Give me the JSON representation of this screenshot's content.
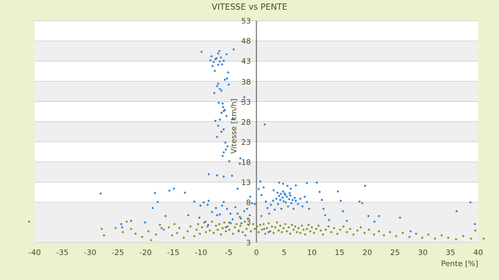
{
  "chart_data": {
    "type": "scatter",
    "title": "VITESSE vs PENTE",
    "xlabel": "Pente [%]",
    "ylabel": "Vitesse [km/h]",
    "xlim": [
      -40,
      40
    ],
    "ylim": [
      3,
      53
    ],
    "x_ticks": [
      "-40",
      "-35",
      "-30",
      "-25",
      "-20",
      "-15",
      "-10",
      "-5",
      "0",
      "5",
      "10",
      "15",
      "20",
      "25",
      "30",
      "35",
      "40"
    ],
    "y_ticks": [
      "3",
      "3",
      "8",
      "13",
      "18",
      "23",
      "28",
      "33",
      "38",
      "43",
      "48",
      "53"
    ],
    "background": "#ecf2cf",
    "plot_bg": "#ffffff",
    "band_color": "#efefef",
    "grid": true,
    "legend": "none",
    "series": [
      {
        "color": "#2b7fd4",
        "points": [
          [
            -9.9,
            45.3
          ],
          [
            -8.3,
            43.2
          ],
          [
            -8.1,
            44.2
          ],
          [
            -7.9,
            41.8
          ],
          [
            -7.7,
            42.8
          ],
          [
            -7.5,
            40.6
          ],
          [
            -7.4,
            43.5
          ],
          [
            -6.9,
            44.9
          ],
          [
            -6.7,
            45.5
          ],
          [
            -6.6,
            42.9
          ],
          [
            -6.4,
            43.9
          ],
          [
            -6.2,
            42.2
          ],
          [
            -5.9,
            43.1
          ],
          [
            -5.4,
            44.7
          ],
          [
            -6.9,
            42.1
          ],
          [
            -7.2,
            43.7
          ],
          [
            -4.1,
            45.9
          ],
          [
            -5.1,
            40.2
          ],
          [
            -7.1,
            36.8
          ],
          [
            -6.9,
            37.4
          ],
          [
            -6.6,
            36.1
          ],
          [
            -6.3,
            35.7
          ],
          [
            -7.6,
            35.1
          ],
          [
            -5.7,
            38.4
          ],
          [
            -5.3,
            38.7
          ],
          [
            -5.0,
            37.2
          ],
          [
            -6.8,
            32.7
          ],
          [
            -6.1,
            32.5
          ],
          [
            -6.0,
            31.6
          ],
          [
            -5.9,
            30.6
          ],
          [
            -6.3,
            30.2
          ],
          [
            -5.7,
            30.9
          ],
          [
            -5.4,
            29.4
          ],
          [
            -6.6,
            28.5
          ],
          [
            -7.4,
            28.2
          ],
          [
            -6.9,
            27.0
          ],
          [
            -5.9,
            26.1
          ],
          [
            -6.3,
            25.5
          ],
          [
            -7.1,
            24.2
          ],
          [
            -5.6,
            22.8
          ],
          [
            -5.2,
            21.9
          ],
          [
            -5.5,
            21.1
          ],
          [
            -5.9,
            20.4
          ],
          [
            -6.1,
            19.5
          ],
          [
            -4.9,
            18.2
          ],
          [
            -2.9,
            18.9
          ],
          [
            -3.0,
            17.6
          ],
          [
            -2.2,
            34.1
          ],
          [
            -2.6,
            33.0
          ],
          [
            -4.3,
            28.7
          ],
          [
            -8.6,
            15.0
          ],
          [
            -7.1,
            14.7
          ],
          [
            -5.9,
            14.4
          ],
          [
            -4.4,
            14.6
          ],
          [
            1.5,
            27.3
          ],
          [
            -28.1,
            10.2
          ],
          [
            -24.4,
            5.3
          ],
          [
            -24.2,
            4.9
          ],
          [
            -18.7,
            7.3
          ],
          [
            -17.8,
            8.1
          ],
          [
            -18.3,
            10.3
          ],
          [
            -15.7,
            10.9
          ],
          [
            -14.9,
            11.4
          ],
          [
            -12.9,
            10.4
          ],
          [
            -11.2,
            8.2
          ],
          [
            -10.1,
            7.6
          ],
          [
            -9.5,
            8.0
          ],
          [
            -8.8,
            7.7
          ],
          [
            -8.6,
            8.4
          ],
          [
            -8.0,
            6.8
          ],
          [
            -7.3,
            7.3
          ],
          [
            -6.6,
            6.5
          ],
          [
            -6.2,
            7.6
          ],
          [
            -5.9,
            8.1
          ],
          [
            -5.3,
            7.2
          ],
          [
            -4.7,
            6.6
          ],
          [
            -4.3,
            5.9
          ],
          [
            -3.8,
            7.4
          ],
          [
            -3.4,
            6.6
          ],
          [
            -2.8,
            6.0
          ],
          [
            -2.2,
            6.9
          ],
          [
            -1.7,
            7.2
          ],
          [
            -1.2,
            6.4
          ],
          [
            -0.8,
            7.9
          ],
          [
            0.4,
            11.3
          ],
          [
            0.7,
            13.2
          ],
          [
            0.9,
            9.8
          ],
          [
            1.3,
            11.7
          ],
          [
            1.7,
            8.2
          ],
          [
            2.0,
            7.3
          ],
          [
            2.3,
            6.6
          ],
          [
            2.6,
            7.7
          ],
          [
            3.0,
            8.4
          ],
          [
            3.3,
            7.1
          ],
          [
            3.6,
            8.9
          ],
          [
            3.9,
            7.8
          ],
          [
            4.1,
            9.6
          ],
          [
            4.3,
            8.6
          ],
          [
            4.5,
            7.2
          ],
          [
            4.7,
            9.2
          ],
          [
            4.9,
            8.3
          ],
          [
            5.1,
            10.2
          ],
          [
            5.3,
            8.0
          ],
          [
            5.5,
            9.4
          ],
          [
            5.7,
            7.5
          ],
          [
            5.9,
            8.8
          ],
          [
            6.1,
            9.7
          ],
          [
            6.3,
            7.9
          ],
          [
            6.5,
            8.6
          ],
          [
            6.7,
            7.2
          ],
          [
            6.9,
            9.1
          ],
          [
            7.1,
            8.4
          ],
          [
            7.5,
            7.8
          ],
          [
            7.9,
            8.9
          ],
          [
            8.3,
            7.5
          ],
          [
            8.7,
            9.4
          ],
          [
            9.1,
            8.1
          ],
          [
            9.5,
            7.2
          ],
          [
            4.4,
            10.1
          ],
          [
            4.8,
            10.7
          ],
          [
            5.2,
            9.9
          ],
          [
            3.8,
            10.4
          ],
          [
            6.0,
            10.3
          ],
          [
            4.1,
            12.9
          ],
          [
            4.8,
            12.6
          ],
          [
            5.6,
            12.1
          ],
          [
            6.2,
            11.4
          ],
          [
            3.1,
            11.0
          ],
          [
            7.1,
            12.2
          ],
          [
            9.1,
            12.8
          ],
          [
            10.9,
            12.9
          ],
          [
            11.4,
            10.6
          ],
          [
            11.8,
            8.6
          ],
          [
            12.1,
            7.2
          ],
          [
            12.4,
            6.4
          ],
          [
            13.1,
            5.8
          ],
          [
            14.7,
            10.7
          ],
          [
            15.2,
            8.4
          ],
          [
            15.6,
            6.9
          ],
          [
            16.3,
            5.7
          ],
          [
            19.1,
            7.9
          ],
          [
            19.6,
            12.1
          ],
          [
            20.2,
            6.3
          ],
          [
            21.3,
            5.6
          ],
          [
            22.1,
            6.3
          ],
          [
            18.6,
            8.2
          ],
          [
            25.9,
            6.1
          ],
          [
            27.8,
            4.4
          ],
          [
            36.1,
            6.9
          ],
          [
            38.6,
            8.0
          ],
          [
            39.4,
            5.3
          ],
          [
            -3.4,
            11.4
          ],
          [
            -1.1,
            9.4
          ],
          [
            -0.3,
            7.8
          ],
          [
            -2.7,
            5.4
          ],
          [
            -3.2,
            4.4
          ],
          [
            -2.0,
            3.9
          ],
          [
            1.4,
            4.7
          ],
          [
            2.2,
            4.3
          ],
          [
            -16.4,
            6.3
          ],
          [
            -22.6,
            5.7
          ],
          [
            -17.1,
            4.8
          ],
          [
            -10.3,
            6.1
          ],
          [
            -7.1,
            6.4
          ],
          [
            -5.5,
            4.9
          ],
          [
            -4.9,
            5.5
          ],
          [
            -8.7,
            5.2
          ],
          [
            -9.2,
            5.6
          ],
          [
            -12.3,
            6.4
          ],
          [
            -20.1,
            5.5
          ]
        ]
      },
      {
        "color": "#8a8a14",
        "points": [
          [
            -41.0,
            5.6
          ],
          [
            -27.9,
            4.7
          ],
          [
            -27.5,
            3.9
          ],
          [
            -23.4,
            5.6
          ],
          [
            -22.6,
            4.7
          ],
          [
            -21.8,
            4.1
          ],
          [
            -20.6,
            3.7
          ],
          [
            -19.5,
            4.4
          ],
          [
            -19.0,
            3.3
          ],
          [
            -18.1,
            4.0
          ],
          [
            -17.4,
            5.2
          ],
          [
            -16.7,
            4.6
          ],
          [
            -15.8,
            4.9
          ],
          [
            -15.2,
            3.9
          ],
          [
            -14.8,
            5.3
          ],
          [
            -14.3,
            4.2
          ],
          [
            -13.9,
            4.8
          ],
          [
            -13.1,
            3.6
          ],
          [
            -12.4,
            4.4
          ],
          [
            -11.9,
            5.0
          ],
          [
            -11.2,
            3.8
          ],
          [
            -10.8,
            4.6
          ],
          [
            -10.5,
            5.3
          ],
          [
            -10.2,
            4.1
          ],
          [
            -9.8,
            4.9
          ],
          [
            -9.4,
            5.5
          ],
          [
            -9.1,
            4.3
          ],
          [
            -8.8,
            5.0
          ],
          [
            -8.4,
            4.5
          ],
          [
            -8.0,
            5.6
          ],
          [
            -7.7,
            4.2
          ],
          [
            -7.3,
            5.1
          ],
          [
            -7.0,
            4.6
          ],
          [
            -6.7,
            5.3
          ],
          [
            -6.4,
            4.0
          ],
          [
            -6.1,
            4.8
          ],
          [
            -5.8,
            5.5
          ],
          [
            -5.5,
            4.4
          ],
          [
            -5.2,
            5.0
          ],
          [
            -4.9,
            4.6
          ],
          [
            -4.6,
            5.4
          ],
          [
            -4.2,
            4.1
          ],
          [
            -3.9,
            4.9
          ],
          [
            -3.6,
            5.3
          ],
          [
            -3.2,
            4.5
          ],
          [
            -2.9,
            5.1
          ],
          [
            -2.5,
            4.3
          ],
          [
            -2.1,
            5.6
          ],
          [
            -1.8,
            4.7
          ],
          [
            -1.4,
            5.2
          ],
          [
            -1.0,
            4.4
          ],
          [
            -0.6,
            5.3
          ],
          [
            -0.3,
            4.7
          ],
          [
            0.1,
            5.0
          ],
          [
            0.4,
            4.3
          ],
          [
            0.7,
            5.2
          ],
          [
            1.0,
            4.6
          ],
          [
            1.3,
            5.3
          ],
          [
            1.6,
            4.1
          ],
          [
            1.9,
            4.8
          ],
          [
            2.2,
            5.4
          ],
          [
            2.5,
            4.4
          ],
          [
            2.8,
            5.0
          ],
          [
            3.1,
            4.2
          ],
          [
            3.4,
            4.9
          ],
          [
            3.7,
            5.5
          ],
          [
            4.0,
            4.5
          ],
          [
            4.3,
            5.1
          ],
          [
            4.6,
            4.3
          ],
          [
            4.9,
            4.8
          ],
          [
            5.2,
            5.3
          ],
          [
            5.5,
            4.4
          ],
          [
            5.8,
            4.9
          ],
          [
            6.1,
            4.1
          ],
          [
            6.4,
            5.2
          ],
          [
            6.7,
            4.6
          ],
          [
            7.0,
            5.0
          ],
          [
            7.3,
            4.3
          ],
          [
            7.6,
            4.8
          ],
          [
            7.9,
            4.2
          ],
          [
            8.2,
            5.1
          ],
          [
            8.5,
            4.6
          ],
          [
            8.8,
            4.0
          ],
          [
            9.1,
            4.7
          ],
          [
            9.4,
            5.2
          ],
          [
            9.7,
            4.4
          ],
          [
            10.0,
            4.9
          ],
          [
            10.4,
            4.2
          ],
          [
            10.8,
            4.7
          ],
          [
            11.2,
            5.1
          ],
          [
            11.6,
            4.5
          ],
          [
            12.0,
            4.0
          ],
          [
            12.5,
            4.6
          ],
          [
            13.0,
            5.0
          ],
          [
            13.5,
            4.3
          ],
          [
            14.0,
            4.8
          ],
          [
            14.6,
            4.1
          ],
          [
            15.1,
            4.6
          ],
          [
            15.7,
            5.0
          ],
          [
            16.3,
            4.3
          ],
          [
            16.9,
            4.7
          ],
          [
            17.5,
            4.0
          ],
          [
            18.2,
            4.5
          ],
          [
            18.8,
            4.9
          ],
          [
            19.5,
            4.2
          ],
          [
            20.3,
            4.6
          ],
          [
            21.2,
            4.0
          ],
          [
            22.1,
            4.4
          ],
          [
            23.0,
            3.9
          ],
          [
            24.1,
            4.3
          ],
          [
            25.2,
            3.8
          ],
          [
            26.4,
            4.2
          ],
          [
            27.6,
            3.7
          ],
          [
            28.8,
            4.1
          ],
          [
            29.9,
            3.6
          ],
          [
            31.0,
            4.0
          ],
          [
            32.2,
            3.5
          ],
          [
            33.4,
            3.9
          ],
          [
            34.6,
            3.6
          ],
          [
            36.0,
            3.4
          ],
          [
            37.3,
            3.8
          ],
          [
            38.7,
            3.5
          ],
          [
            39.5,
            4.5
          ],
          [
            41.0,
            3.5
          ],
          [
            -25.4,
            4.8
          ],
          [
            -24.1,
            4.3
          ],
          [
            -3.0,
            6.2
          ],
          [
            -1.5,
            6.0
          ],
          [
            0.9,
            6.3
          ]
        ]
      }
    ]
  }
}
